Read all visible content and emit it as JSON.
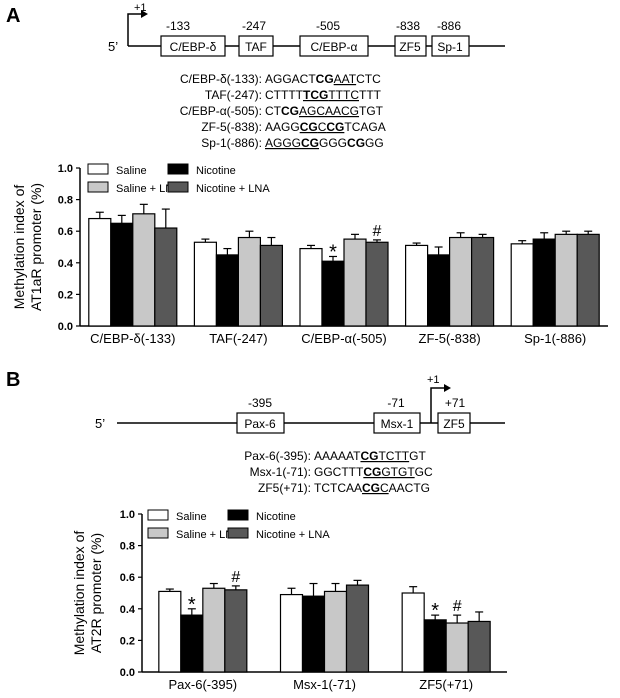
{
  "panel_a": {
    "letter": "A",
    "tss_label": "+1",
    "prime_label": "5’",
    "boxes": [
      {
        "label": "C/EBP-δ",
        "pos": "-133"
      },
      {
        "label": "TAF",
        "pos": "-247"
      },
      {
        "label": "C/EBP-α",
        "pos": "-505"
      },
      {
        "label": "ZF5",
        "pos": "-838"
      },
      {
        "label": "Sp-1",
        "pos": "-886"
      }
    ],
    "sequences": [
      {
        "label": "C/EBP-δ(-133):",
        "parts": [
          {
            "t": "AGGACT"
          },
          {
            "t": "CG",
            "b": true
          },
          {
            "t": "AAT",
            "u": true
          },
          {
            "t": "CTC"
          }
        ]
      },
      {
        "label": "TAF(-247):",
        "parts": [
          {
            "t": "CTTTT"
          },
          {
            "t": "TCG",
            "b": true,
            "u": true
          },
          {
            "t": "TTTC",
            "u": true
          },
          {
            "t": "TTT"
          }
        ]
      },
      {
        "label": "C/EBP-α(-505):",
        "parts": [
          {
            "t": "CT"
          },
          {
            "t": "CG",
            "b": true
          },
          {
            "t": "AGCAACG",
            "u": true
          },
          {
            "t": "TGT"
          }
        ]
      },
      {
        "label": "ZF-5(-838):",
        "parts": [
          {
            "t": "AAGG"
          },
          {
            "t": "CG",
            "b": true,
            "u": true
          },
          {
            "t": "C",
            "u": true
          },
          {
            "t": "CG",
            "b": true,
            "u": true
          },
          {
            "t": "TCAGA"
          }
        ]
      },
      {
        "label": "Sp-1(-886):",
        "parts": [
          {
            "t": "AGGG",
            "u": true
          },
          {
            "t": "CG",
            "b": true,
            "u": true
          },
          {
            "t": "GGG"
          },
          {
            "t": "CG",
            "b": true
          },
          {
            "t": "GG"
          }
        ]
      }
    ]
  },
  "panel_b": {
    "letter": "B",
    "tss_label": "+1",
    "prime_label": "5’",
    "boxes": [
      {
        "label": "Pax-6",
        "pos": "-395"
      },
      {
        "label": "Msx-1",
        "pos": "-71"
      },
      {
        "label": "ZF5",
        "pos": "+71"
      }
    ],
    "sequences": [
      {
        "label": "Pax-6(-395):",
        "parts": [
          {
            "t": "AAAAAT"
          },
          {
            "t": "CG",
            "b": true,
            "u": true
          },
          {
            "t": "TCTT",
            "u": true
          },
          {
            "t": "GT"
          }
        ]
      },
      {
        "label": "Msx-1(-71):",
        "parts": [
          {
            "t": "GGCTTT"
          },
          {
            "t": "CG",
            "b": true,
            "u": true
          },
          {
            "t": "GTGT",
            "u": true
          },
          {
            "t": "GC"
          }
        ]
      },
      {
        "label": "ZF5(+71):",
        "parts": [
          {
            "t": "TCTCAA"
          },
          {
            "t": "CG",
            "b": true,
            "u": true
          },
          {
            "t": "C",
            "u": true
          },
          {
            "t": "AACTG"
          }
        ]
      }
    ]
  },
  "chart_data": [
    {
      "type": "bar",
      "ylabel": "Methylation index of AT1aR promoter (%)",
      "ylim": [
        0,
        1.0
      ],
      "yticks": [
        "0.0",
        "0.2",
        "0.4",
        "0.6",
        "0.8",
        "1.0"
      ],
      "categories": [
        "C/EBP-δ(-133)",
        "TAF(-247)",
        "C/EBP-α(-505)",
        "ZF-5(-838)",
        "Sp-1(-886)"
      ],
      "legend": [
        "Saline",
        "Nicotine",
        "Saline + LNA",
        "Nicotine + LNA"
      ],
      "colors": [
        "#ffffff",
        "#000000",
        "#c8c8c8",
        "#585858"
      ],
      "series": [
        {
          "name": "Saline",
          "values": [
            0.68,
            0.53,
            0.49,
            0.51,
            0.52
          ],
          "errors": [
            0.04,
            0.02,
            0.02,
            0.015,
            0.02
          ]
        },
        {
          "name": "Nicotine",
          "values": [
            0.65,
            0.45,
            0.41,
            0.45,
            0.55
          ],
          "errors": [
            0.05,
            0.04,
            0.03,
            0.05,
            0.04
          ]
        },
        {
          "name": "Saline + LNA",
          "values": [
            0.71,
            0.56,
            0.55,
            0.56,
            0.58
          ],
          "errors": [
            0.06,
            0.04,
            0.03,
            0.03,
            0.02
          ]
        },
        {
          "name": "Nicotine + LNA",
          "values": [
            0.62,
            0.51,
            0.53,
            0.56,
            0.58
          ],
          "errors": [
            0.12,
            0.05,
            0.015,
            0.02,
            0.02
          ]
        }
      ],
      "annotations": [
        {
          "category": 2,
          "series": 1,
          "text": "*"
        },
        {
          "category": 2,
          "series": 3,
          "text": "#"
        }
      ]
    },
    {
      "type": "bar",
      "ylabel": "Methylation index of AT2R promoter (%)",
      "ylim": [
        0,
        1.0
      ],
      "yticks": [
        "0.0",
        "0.2",
        "0.4",
        "0.6",
        "0.8",
        "1.0"
      ],
      "categories": [
        "Pax-6(-395)",
        "Msx-1(-71)",
        "ZF5(+71)"
      ],
      "legend": [
        "Saline",
        "Nicotine",
        "Saline + LNA",
        "Nicotine + LNA"
      ],
      "colors": [
        "#ffffff",
        "#000000",
        "#c8c8c8",
        "#585858"
      ],
      "series": [
        {
          "name": "Saline",
          "values": [
            0.51,
            0.49,
            0.5
          ],
          "errors": [
            0.015,
            0.04,
            0.04
          ]
        },
        {
          "name": "Nicotine",
          "values": [
            0.36,
            0.48,
            0.33
          ],
          "errors": [
            0.04,
            0.08,
            0.03
          ]
        },
        {
          "name": "Saline + LNA",
          "values": [
            0.53,
            0.51,
            0.31
          ],
          "errors": [
            0.03,
            0.05,
            0.05
          ]
        },
        {
          "name": "Nicotine + LNA",
          "values": [
            0.52,
            0.55,
            0.32
          ],
          "errors": [
            0.025,
            0.03,
            0.06
          ]
        }
      ],
      "annotations": [
        {
          "category": 0,
          "series": 1,
          "text": "*"
        },
        {
          "category": 0,
          "series": 3,
          "text": "#"
        },
        {
          "category": 2,
          "series": 1,
          "text": "*"
        },
        {
          "category": 2,
          "series": 2,
          "text": "#"
        }
      ]
    }
  ]
}
